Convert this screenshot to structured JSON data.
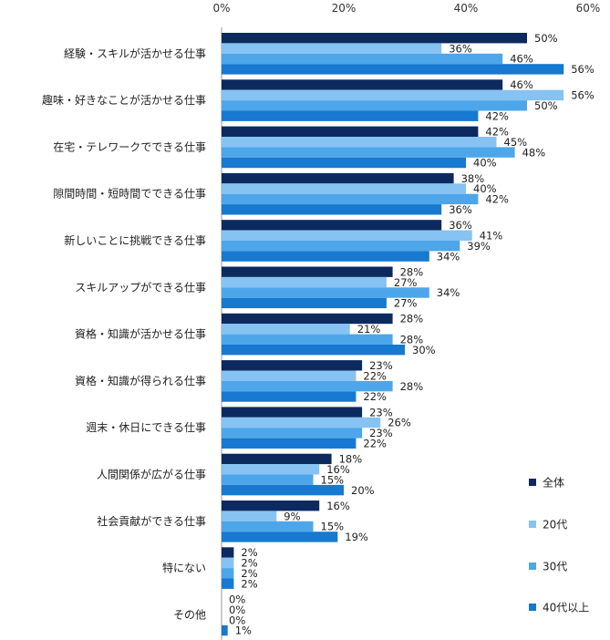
{
  "chart_data": {
    "type": "bar",
    "orientation": "horizontal",
    "title": "",
    "xlabel": "",
    "ylabel": "",
    "xlim": [
      0,
      60
    ],
    "ticks": [
      "0%",
      "20%",
      "40%",
      "60%"
    ],
    "tick_values": [
      0,
      20,
      40,
      60
    ],
    "value_suffix": "%",
    "legend_position": "right",
    "categories": [
      "経験・スキルが活かせる仕事",
      "趣味・好きなことが活かせる仕事",
      "在宅・テレワークでできる仕事",
      "隙間時間・短時間でできる仕事",
      "新しいことに挑戦できる仕事",
      "スキルアップができる仕事",
      "資格・知識が活かせる仕事",
      "資格・知識が得られる仕事",
      "週末・休日にできる仕事",
      "人間関係が広がる仕事",
      "社会貢献ができる仕事",
      "特にない",
      "その他"
    ],
    "series": [
      {
        "name": "全体",
        "color": "#0d2a5e",
        "values": [
          50,
          46,
          42,
          38,
          36,
          28,
          28,
          23,
          23,
          18,
          16,
          2,
          0
        ]
      },
      {
        "name": "20代",
        "color": "#86c3f2",
        "values": [
          36,
          56,
          45,
          40,
          41,
          27,
          21,
          22,
          26,
          16,
          9,
          2,
          0
        ]
      },
      {
        "name": "30代",
        "color": "#4ea6ea",
        "values": [
          46,
          50,
          48,
          42,
          39,
          34,
          28,
          28,
          23,
          15,
          15,
          2,
          0
        ]
      },
      {
        "name": "40代以上",
        "color": "#1779cf",
        "values": [
          56,
          42,
          40,
          36,
          34,
          27,
          30,
          22,
          22,
          20,
          19,
          2,
          1
        ]
      }
    ]
  }
}
